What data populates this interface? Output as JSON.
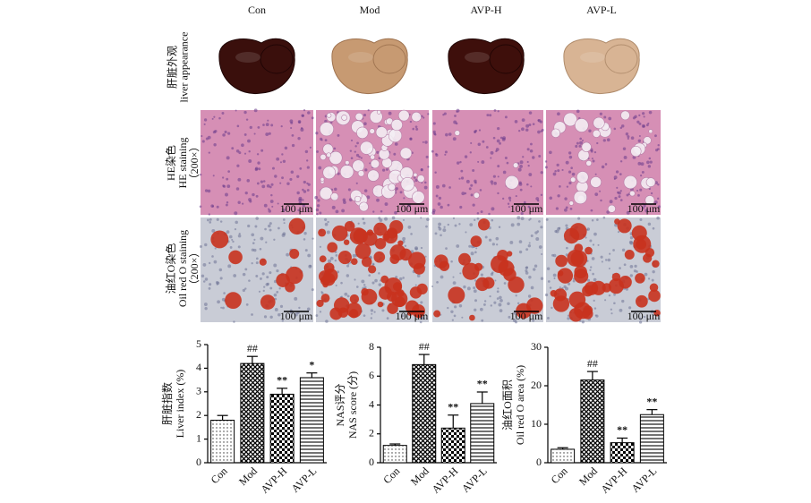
{
  "figure": {
    "columns": [
      "Con",
      "Mod",
      "AVP-H",
      "AVP-L"
    ],
    "rows": [
      {
        "label_cn": "肝脏外观",
        "label_en": "liver appearance"
      },
      {
        "label_cn": "HE染色",
        "label_en": "HE staining",
        "magnification": "（200×）"
      },
      {
        "label_cn": "油红O染色",
        "label_en": "Oil red O staining",
        "magnification": "（200×）"
      }
    ],
    "scale_bar": "100 μm"
  },
  "chart_data": [
    {
      "type": "bar",
      "ylabel_cn": "肝脏指数",
      "ylabel": "Liver index (%)",
      "categories": [
        "Con",
        "Mod",
        "AVP-H",
        "AVP-L"
      ],
      "values": [
        1.8,
        4.2,
        2.9,
        3.6
      ],
      "errors": [
        0.2,
        0.3,
        0.25,
        0.2
      ],
      "annotations": [
        null,
        "##",
        "**",
        "*"
      ],
      "patterns": [
        "dots",
        "crosshatch",
        "checker",
        "hlines"
      ],
      "ylim": [
        0,
        5
      ],
      "yticks": [
        0,
        1,
        2,
        3,
        4,
        5
      ]
    },
    {
      "type": "bar",
      "ylabel_cn": "NAS评分",
      "ylabel": "NAS score (分)",
      "categories": [
        "Con",
        "Mod",
        "AVP-H",
        "AVP-L"
      ],
      "values": [
        1.2,
        6.8,
        2.4,
        4.1
      ],
      "errors": [
        0.1,
        0.7,
        0.9,
        0.8
      ],
      "annotations": [
        null,
        "##",
        "**",
        "**"
      ],
      "patterns": [
        "dots",
        "crosshatch",
        "checker",
        "hlines"
      ],
      "ylim": [
        0,
        8
      ],
      "yticks": [
        0,
        2,
        4,
        6,
        8
      ]
    },
    {
      "type": "bar",
      "ylabel_cn": "油红O面积",
      "ylabel": "Oil red O area (%)",
      "categories": [
        "Con",
        "Mod",
        "AVP-H",
        "AVP-L"
      ],
      "values": [
        3.5,
        21.5,
        5.2,
        12.5
      ],
      "errors": [
        0.4,
        2.2,
        1.2,
        1.3
      ],
      "annotations": [
        null,
        "##",
        "**",
        "**"
      ],
      "patterns": [
        "dots",
        "crosshatch",
        "checker",
        "hlines"
      ],
      "ylim": [
        0,
        30
      ],
      "yticks": [
        0,
        10,
        20,
        30
      ]
    }
  ]
}
